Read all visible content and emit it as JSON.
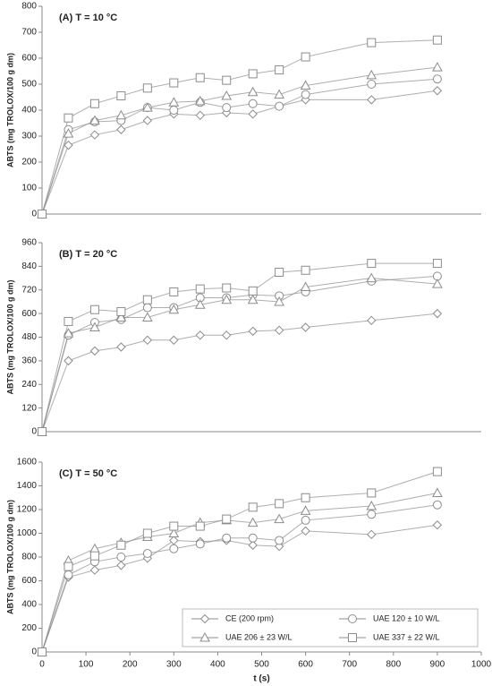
{
  "chart_data": [
    {
      "type": "line",
      "title": "(A) T = 10 °C",
      "ylabel": "ABTS (mg TROLOX/100 g dm)",
      "x": [
        0,
        60,
        120,
        180,
        240,
        300,
        360,
        420,
        480,
        540,
        600,
        750,
        900
      ],
      "xlim": [
        0,
        1000
      ],
      "ylim": [
        0,
        800
      ],
      "yticks": [
        0,
        100,
        200,
        300,
        400,
        500,
        600,
        700,
        800
      ],
      "series": [
        {
          "marker": "diamond",
          "color": "#8c8c8c",
          "values": [
            0,
            265,
            305,
            325,
            360,
            385,
            380,
            390,
            385,
            415,
            440,
            440,
            475
          ]
        },
        {
          "marker": "circle",
          "color": "#8c8c8c",
          "values": [
            0,
            325,
            355,
            360,
            410,
            400,
            430,
            410,
            425,
            415,
            460,
            500,
            520
          ]
        },
        {
          "marker": "triangle",
          "color": "#8c8c8c",
          "values": [
            0,
            310,
            360,
            380,
            410,
            430,
            435,
            455,
            470,
            460,
            495,
            535,
            565
          ]
        },
        {
          "marker": "square",
          "color": "#8c8c8c",
          "values": [
            0,
            370,
            425,
            455,
            485,
            505,
            525,
            515,
            540,
            555,
            605,
            660,
            670
          ]
        }
      ]
    },
    {
      "type": "line",
      "title": "(B) T = 20 °C",
      "ylabel": "ABTS (mg TROLOX/100 g dm)",
      "x": [
        0,
        60,
        120,
        180,
        240,
        300,
        360,
        420,
        480,
        540,
        600,
        750,
        900
      ],
      "xlim": [
        0,
        1000
      ],
      "ylim": [
        0,
        960
      ],
      "yticks": [
        0,
        120,
        240,
        360,
        480,
        600,
        720,
        840,
        960
      ],
      "series": [
        {
          "marker": "diamond",
          "color": "#8c8c8c",
          "values": [
            0,
            360,
            410,
            430,
            465,
            465,
            490,
            490,
            510,
            515,
            530,
            565,
            600
          ]
        },
        {
          "marker": "circle",
          "color": "#8c8c8c",
          "values": [
            0,
            490,
            555,
            570,
            630,
            630,
            680,
            680,
            695,
            690,
            710,
            765,
            790
          ]
        },
        {
          "marker": "triangle",
          "color": "#8c8c8c",
          "values": [
            0,
            500,
            530,
            580,
            580,
            620,
            645,
            670,
            670,
            660,
            735,
            780,
            750
          ]
        },
        {
          "marker": "square",
          "color": "#8c8c8c",
          "values": [
            0,
            560,
            620,
            610,
            670,
            710,
            725,
            730,
            715,
            810,
            820,
            855,
            855
          ]
        }
      ]
    },
    {
      "type": "line",
      "title": "(C) T = 50 °C",
      "ylabel": "ABTS (mg TROLOX/100 g dm)",
      "xlabel": "t (s)",
      "x": [
        0,
        60,
        120,
        180,
        240,
        300,
        360,
        420,
        480,
        540,
        600,
        750,
        900
      ],
      "xlim": [
        0,
        1000
      ],
      "xticks": [
        0,
        100,
        200,
        300,
        400,
        500,
        600,
        700,
        800,
        900,
        1000
      ],
      "ylim": [
        0,
        1600
      ],
      "yticks": [
        0,
        200,
        400,
        600,
        800,
        1000,
        1200,
        1400,
        1600
      ],
      "legend": "lower right",
      "series": [
        {
          "name": "CE (200 rpm)",
          "marker": "diamond",
          "color": "#8c8c8c",
          "values": [
            0,
            630,
            690,
            730,
            790,
            940,
            930,
            940,
            900,
            890,
            1020,
            990,
            1070
          ]
        },
        {
          "name": "UAE 120 ± 10 W/L",
          "marker": "circle",
          "color": "#8c8c8c",
          "values": [
            0,
            650,
            760,
            800,
            830,
            870,
            910,
            960,
            960,
            940,
            1110,
            1160,
            1240
          ]
        },
        {
          "name": "UAE 206 ± 23 W/L",
          "marker": "triangle",
          "color": "#8c8c8c",
          "values": [
            0,
            770,
            870,
            920,
            970,
            1000,
            1090,
            1110,
            1090,
            1120,
            1190,
            1230,
            1340
          ]
        },
        {
          "name": "UAE 337 ± 22 W/L",
          "marker": "square",
          "color": "#8c8c8c",
          "values": [
            0,
            720,
            810,
            900,
            1000,
            1060,
            1060,
            1120,
            1220,
            1250,
            1300,
            1340,
            1520
          ]
        }
      ]
    }
  ]
}
